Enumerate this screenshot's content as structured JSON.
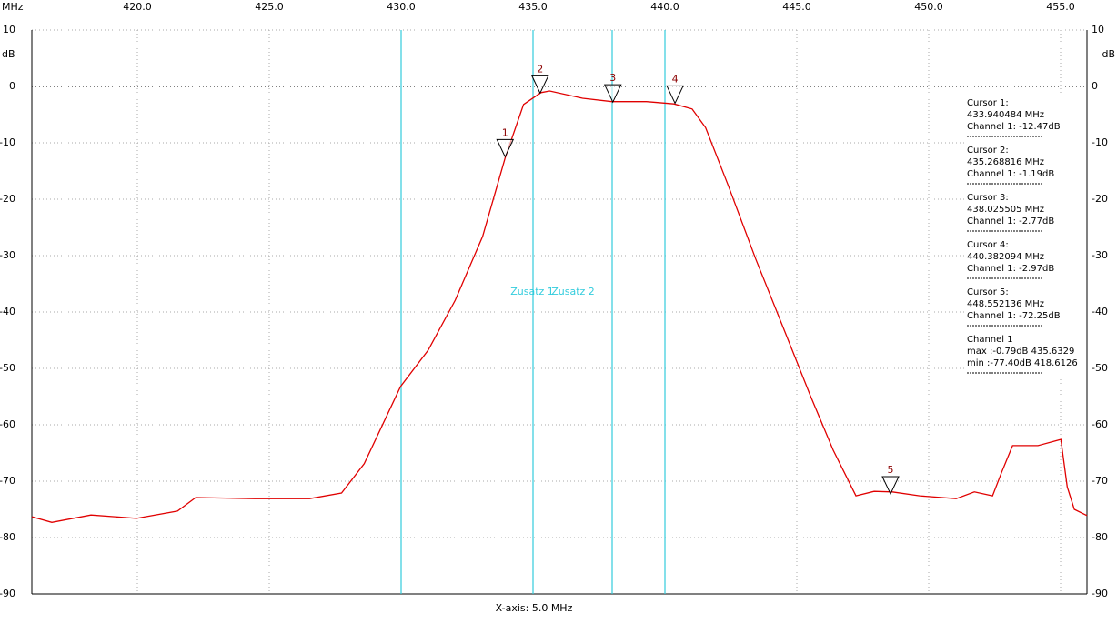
{
  "chart_data": {
    "type": "line",
    "x_unit_label": "MHz",
    "y_label": "dB",
    "y2_label": "dB",
    "x_axis_label": "X-axis: 5.0 MHz",
    "xlim": [
      416,
      456
    ],
    "xticks": [
      {
        "value": 420,
        "label": "420.0"
      },
      {
        "value": 425,
        "label": "425.0"
      },
      {
        "value": 430,
        "label": "430.0"
      },
      {
        "value": 435,
        "label": "435.0"
      },
      {
        "value": 440,
        "label": "440.0"
      },
      {
        "value": 445,
        "label": "445.0"
      },
      {
        "value": 450,
        "label": "450.0"
      },
      {
        "value": 455,
        "label": "455.0"
      }
    ],
    "ylim": [
      -90,
      10
    ],
    "yticks": [
      10,
      0,
      -10,
      -20,
      -30,
      -40,
      -50,
      -60,
      -70,
      -80,
      -90
    ],
    "y2lim": [
      -90,
      10
    ],
    "y2ticks": [
      10,
      0,
      -10,
      -20,
      -30,
      -40,
      -50,
      -60,
      -70,
      -80,
      -90
    ],
    "grid": true,
    "x": [
      416.0,
      416.76,
      418.24,
      419.97,
      421.52,
      422.21,
      424.46,
      426.53,
      427.74,
      428.6,
      429.98,
      431.02,
      432.05,
      433.09,
      433.95,
      434.64,
      435.3,
      435.63,
      436.88,
      437.99,
      439.3,
      440.34,
      441.03,
      441.54,
      442.41,
      443.44,
      444.48,
      445.51,
      446.38,
      447.24,
      447.93,
      448.62,
      449.66,
      451.04,
      451.73,
      452.42,
      452.76,
      453.18,
      454.14,
      455.01,
      455.25,
      455.52,
      456.0
    ],
    "series": [
      {
        "name": "Channel 1",
        "color": "#e00000",
        "values": [
          -76.3,
          -77.3,
          -76.0,
          -76.6,
          -75.3,
          -72.9,
          -73.1,
          -73.1,
          -72.1,
          -66.9,
          -53.2,
          -46.8,
          -37.9,
          -26.6,
          -12.6,
          -3.2,
          -1.1,
          -0.8,
          -2.1,
          -2.7,
          -2.7,
          -3.1,
          -4.0,
          -7.3,
          -17.7,
          -30.6,
          -42.7,
          -54.8,
          -64.5,
          -72.6,
          -71.8,
          -71.9,
          -72.6,
          -73.1,
          -71.9,
          -72.6,
          -68.5,
          -63.7,
          -63.7,
          -62.6,
          -71.0,
          -75.0,
          -76.1
        ]
      }
    ],
    "vlines": {
      "color": "#33ccdd",
      "values": [
        430,
        435,
        438,
        440
      ]
    },
    "annotations": [
      "Zusatz 1",
      "Zusatz 2"
    ],
    "cursors": [
      {
        "label": "1",
        "x": 433.940484,
        "y": -12.47,
        "lines": [
          "Cursor 1:",
          "433.940484 MHz",
          "Channel 1: -12.47dB"
        ]
      },
      {
        "label": "2",
        "x": 435.268816,
        "y": -1.19,
        "lines": [
          "Cursor 2:",
          "435.268816 MHz",
          "Channel 1: -1.19dB"
        ]
      },
      {
        "label": "3",
        "x": 438.025505,
        "y": -2.77,
        "lines": [
          "Cursor 3:",
          "438.025505 MHz",
          "Channel 1: -2.77dB"
        ]
      },
      {
        "label": "4",
        "x": 440.382094,
        "y": -2.97,
        "lines": [
          "Cursor 4:",
          "440.382094 MHz",
          "Channel 1: -2.97dB"
        ]
      },
      {
        "label": "5",
        "x": 448.552136,
        "y": -72.25,
        "lines": [
          "Cursor 5:",
          "448.552136 MHz",
          "Channel 1: -72.25dB"
        ]
      }
    ],
    "channel_info": [
      "max :-0.79dB 435.6329",
      "min :-77.40dB 418.6126"
    ]
  }
}
